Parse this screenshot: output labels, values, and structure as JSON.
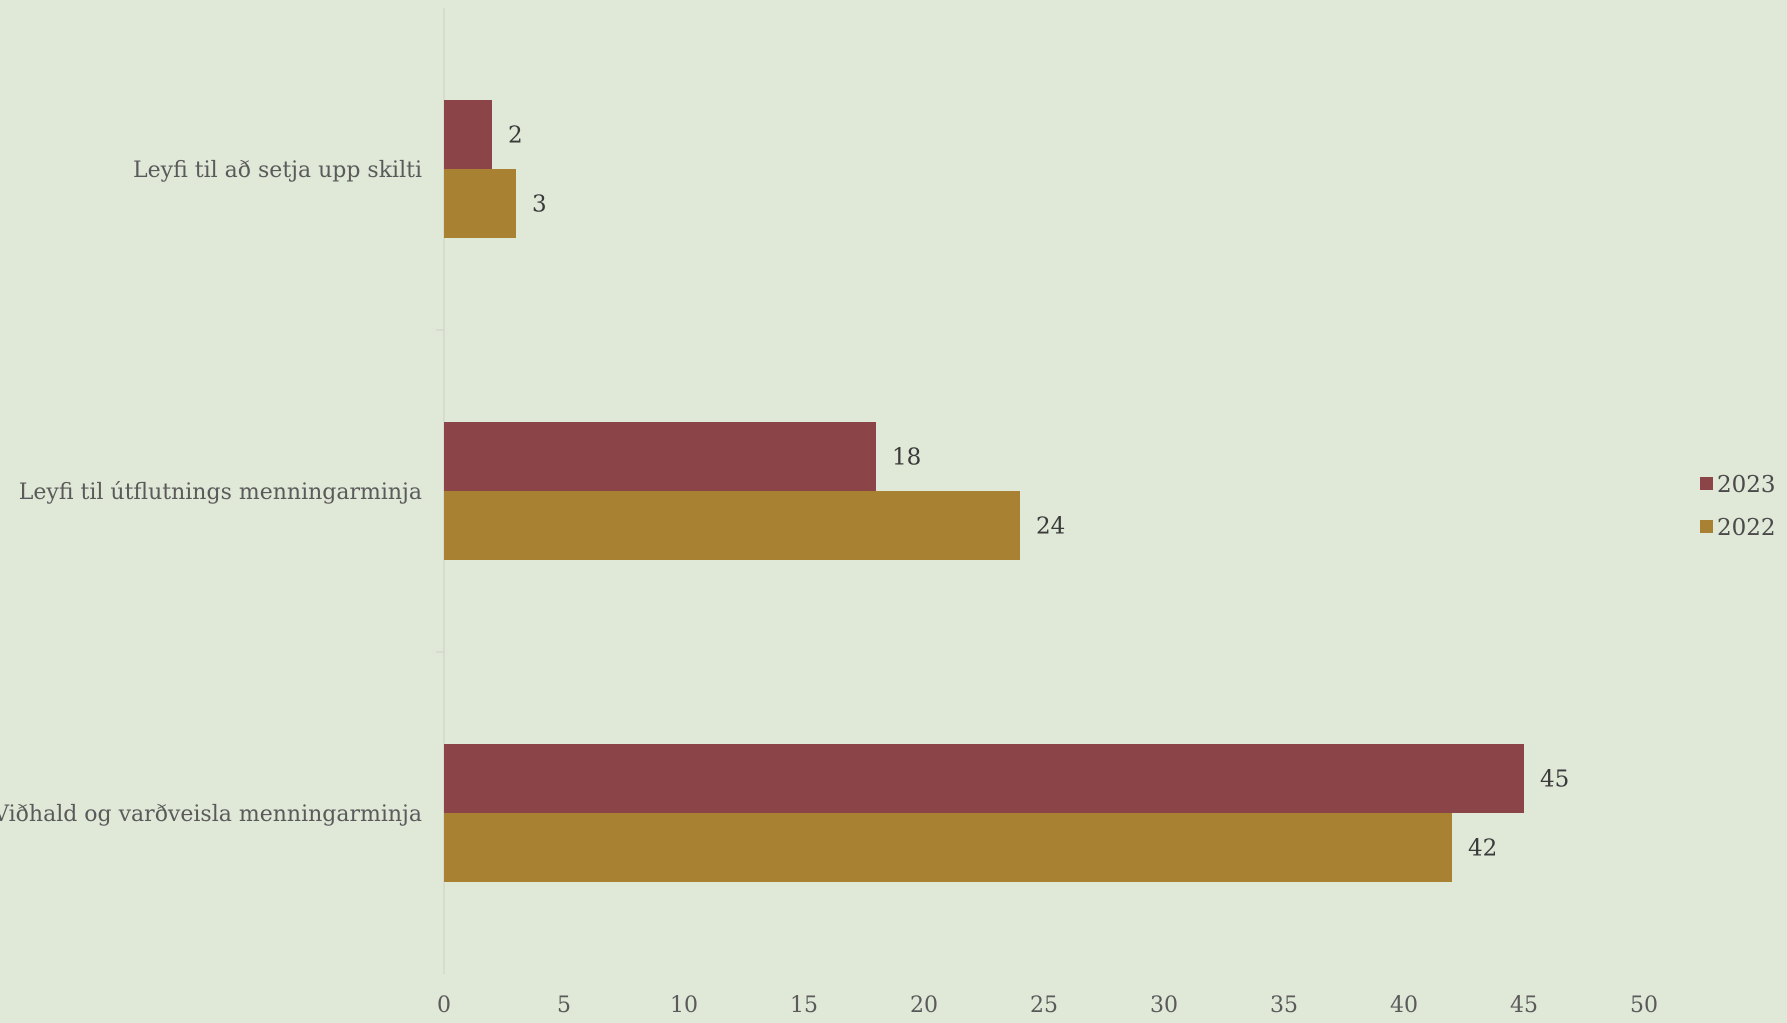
{
  "chart_data": {
    "type": "bar",
    "orientation": "horizontal",
    "categories": [
      "Leyfi til að setja upp skilti",
      "Leyfi til útflutnings menningarminja",
      "Viðhald og varðveisla menningarminja"
    ],
    "series": [
      {
        "name": "2023",
        "color": "#8b4448",
        "values": [
          2,
          18,
          45
        ]
      },
      {
        "name": "2022",
        "color": "#a88232",
        "values": [
          3,
          24,
          42
        ]
      }
    ],
    "xlim": [
      0,
      50
    ],
    "xticks": [
      "0",
      "5",
      "10",
      "15",
      "20",
      "25",
      "30",
      "35",
      "40",
      "45",
      "50"
    ],
    "grid": false,
    "legend_position": "right",
    "data_labels": true
  }
}
